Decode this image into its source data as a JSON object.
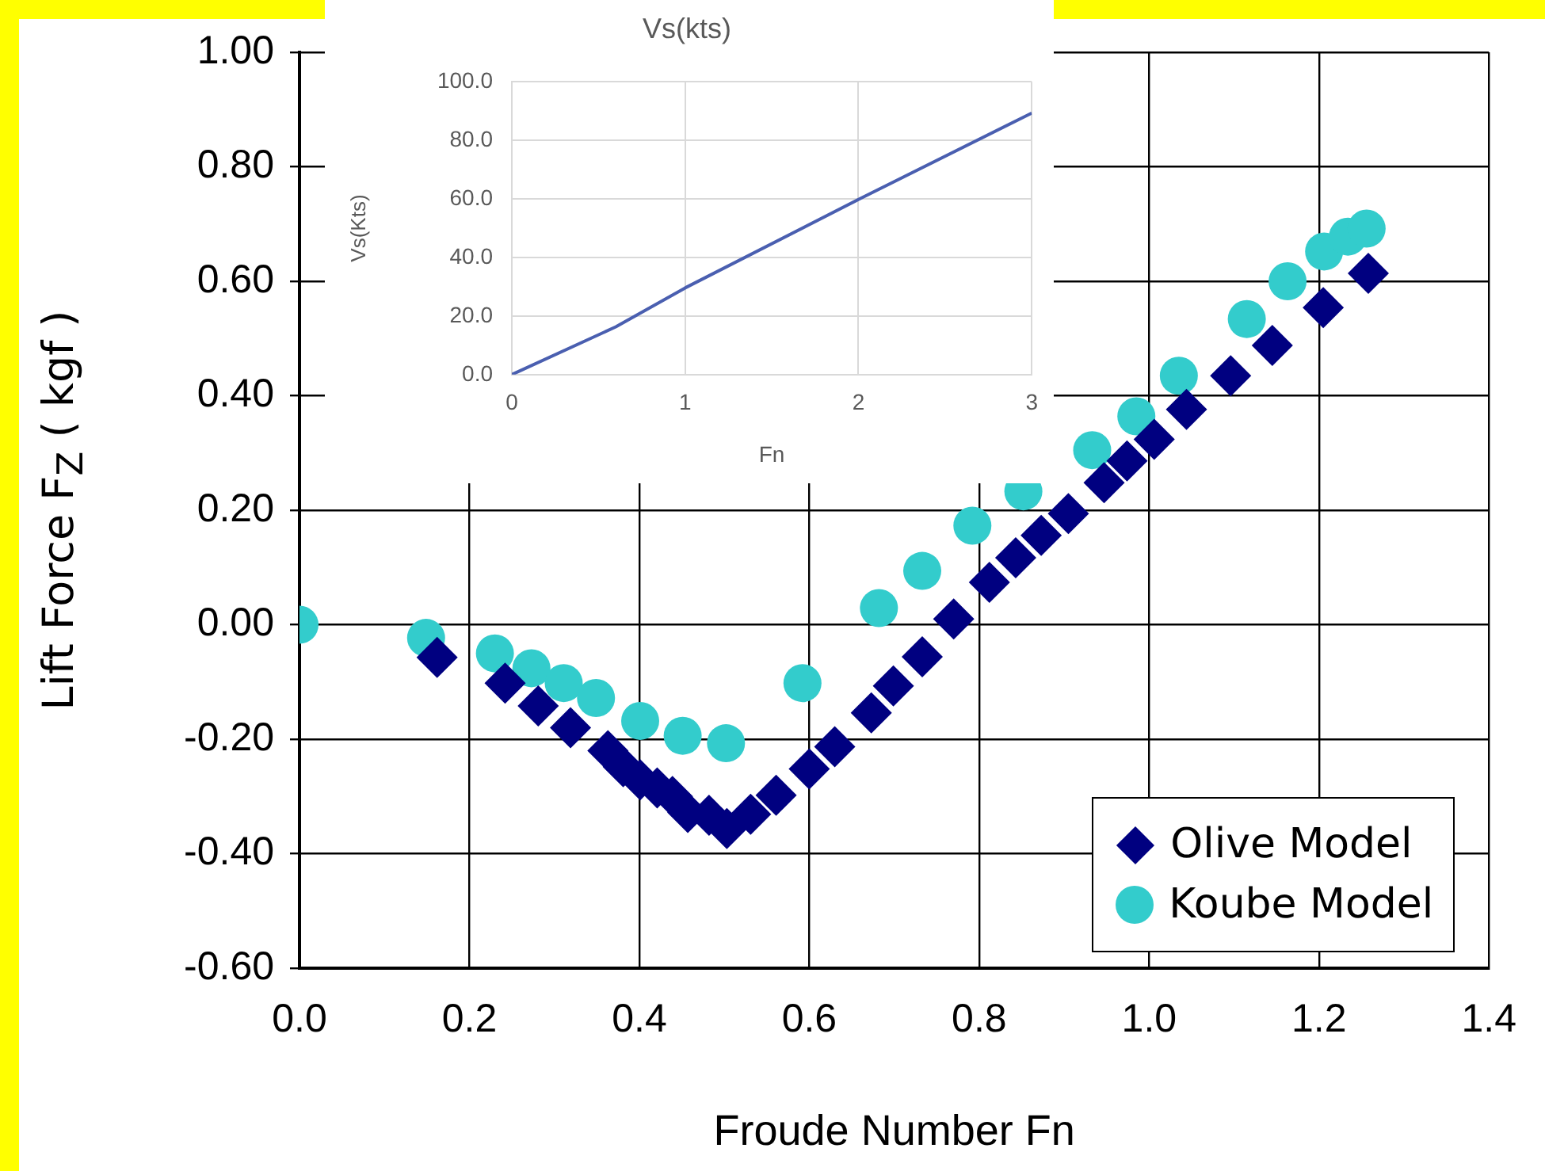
{
  "chart_data": [
    {
      "type": "scatter",
      "xlabel": "Froude Number Fn",
      "ylabel": "Lift Force F$_{Z}$ ( kgf )",
      "xlim": [
        0,
        1.4
      ],
      "ylim": [
        -0.6,
        1.0
      ],
      "xticks": [
        {
          "value": 0,
          "label": "0.0"
        },
        {
          "value": 0.2,
          "label": "0.2"
        },
        {
          "value": 0.4,
          "label": "0.4"
        },
        {
          "value": 0.6,
          "label": "0.6"
        },
        {
          "value": 0.8,
          "label": "0.8"
        },
        {
          "value": 1.0,
          "label": "1.0"
        },
        {
          "value": 1.2,
          "label": "1.2"
        },
        {
          "value": 1.4,
          "label": "1.4"
        }
      ],
      "yticks": [
        {
          "value": -0.6,
          "label": "-0.60"
        },
        {
          "value": -0.4,
          "label": "-0.40"
        },
        {
          "value": -0.2,
          "label": "-0.20"
        },
        {
          "value": 0,
          "label": "0.00"
        },
        {
          "value": 0.2,
          "label": "0.20"
        },
        {
          "value": 0.4,
          "label": "0.40"
        },
        {
          "value": 0.6,
          "label": "0.60"
        },
        {
          "value": 0.8,
          "label": "0.80"
        },
        {
          "value": 1.0,
          "label": "1.00"
        }
      ],
      "grid": true,
      "legend": "bottom right",
      "series": [
        {
          "name": "Olive Model",
          "color": "#000080",
          "marker": "diamond",
          "x": [
            0.162,
            0.242,
            0.281,
            0.319,
            0.363,
            0.381,
            0.401,
            0.421,
            0.439,
            0.457,
            0.482,
            0.503,
            0.531,
            0.561,
            0.6,
            0.63,
            0.673,
            0.699,
            0.733,
            0.77,
            0.812,
            0.843,
            0.873,
            0.905,
            0.947,
            0.974,
            1.006,
            1.044,
            1.096,
            1.145,
            1.205,
            1.258
          ],
          "values": [
            -0.057,
            -0.102,
            -0.142,
            -0.18,
            -0.22,
            -0.248,
            -0.271,
            -0.285,
            -0.3,
            -0.328,
            -0.333,
            -0.356,
            -0.331,
            -0.298,
            -0.252,
            -0.213,
            -0.154,
            -0.107,
            -0.056,
            0.01,
            0.074,
            0.117,
            0.156,
            0.194,
            0.248,
            0.286,
            0.324,
            0.376,
            0.435,
            0.488,
            0.554,
            0.614
          ]
        },
        {
          "name": "Koube Model",
          "color": "#33cccc",
          "marker": "circle",
          "x": [
            0,
            0.149,
            0.23,
            0.273,
            0.311,
            0.349,
            0.401,
            0.451,
            0.502,
            0.592,
            0.682,
            0.733,
            0.792,
            0.852,
            0.933,
            0.985,
            1.035,
            1.115,
            1.163,
            1.206,
            1.234,
            1.256
          ],
          "values": [
            0,
            -0.023,
            -0.05,
            -0.076,
            -0.102,
            -0.128,
            -0.168,
            -0.194,
            -0.207,
            -0.102,
            0.029,
            0.094,
            0.173,
            0.233,
            0.305,
            0.364,
            0.435,
            0.534,
            0.6,
            0.652,
            0.678,
            0.692
          ]
        }
      ]
    },
    {
      "type": "line",
      "title": "Vs(kts)",
      "xlabel": "Fn",
      "ylabel": "Vs(Kts)",
      "xlim": [
        0,
        3
      ],
      "xticks": [
        0,
        1,
        2,
        3
      ],
      "ylim": [
        0,
        100
      ],
      "yticks": [
        {
          "value": 0,
          "label": "0.0"
        },
        {
          "value": 20,
          "label": "20.0"
        },
        {
          "value": 40,
          "label": "40.0"
        },
        {
          "value": 60,
          "label": "60.0"
        },
        {
          "value": 80,
          "label": "80.0"
        },
        {
          "value": 100,
          "label": "100.0"
        }
      ],
      "grid": true,
      "marker": "none",
      "series": [
        {
          "color": "#4a5fb0",
          "x": [
            0,
            0.6,
            1,
            2,
            3
          ],
          "values": [
            0,
            16.3,
            29.6,
            59.8,
            89.3
          ]
        }
      ]
    }
  ]
}
